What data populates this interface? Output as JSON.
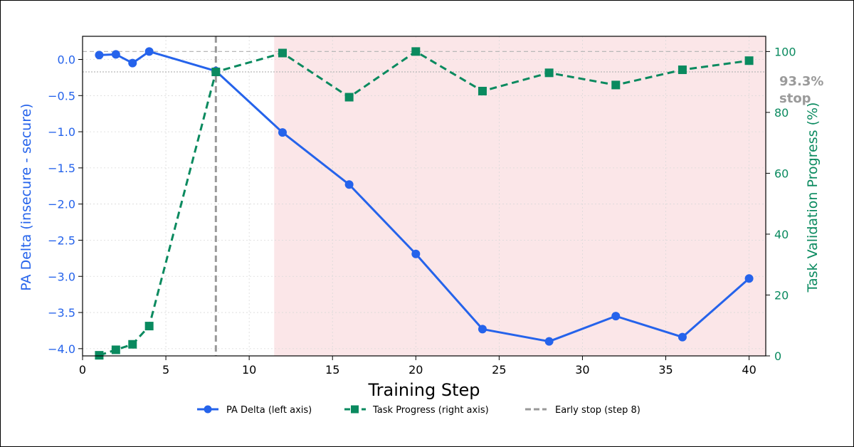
{
  "chart_data": {
    "type": "line",
    "xlabel": "Training Step",
    "ylabel_left": "PA Delta (insecure - secure)",
    "ylabel_right": "Task Validation Progress (%)",
    "xlim": [
      0,
      41
    ],
    "ylim_left": [
      -4.1,
      0.32
    ],
    "ylim_right": [
      0,
      105
    ],
    "x_ticks": [
      0,
      5,
      10,
      15,
      20,
      25,
      30,
      35,
      40
    ],
    "y_left_ticks": [
      0.0,
      -0.5,
      -1.0,
      -1.5,
      -2.0,
      -2.5,
      -3.0,
      -3.5,
      -4.0
    ],
    "y_left_tick_labels": [
      "0.0",
      "−0.5",
      "−1.0",
      "−1.5",
      "−2.0",
      "−2.5",
      "−3.0",
      "−3.5",
      "−4.0"
    ],
    "y_right_ticks": [
      0,
      20,
      40,
      60,
      80,
      100
    ],
    "grid": true,
    "shaded_region": {
      "x_start": 11.5,
      "x_end": 41,
      "color": "#fbe6e8"
    },
    "series": [
      {
        "name": "PA Delta (left axis)",
        "axis": "left",
        "color": "#2563eb",
        "style": "solid",
        "marker": "circle",
        "x": [
          1,
          2,
          3,
          4,
          8,
          12,
          16,
          20,
          24,
          28,
          32,
          36,
          40
        ],
        "values": [
          0.06,
          0.07,
          -0.05,
          0.11,
          -0.16,
          -1.01,
          -1.73,
          -2.69,
          -3.73,
          -3.9,
          -3.55,
          -3.84,
          -3.03
        ]
      },
      {
        "name": "Task Progress (right axis)",
        "axis": "right",
        "color": "#0a8a5f",
        "style": "dashed",
        "marker": "square",
        "x": [
          1,
          2,
          3,
          4,
          8,
          12,
          16,
          20,
          24,
          28,
          32,
          36,
          40
        ],
        "values": [
          0.2,
          2,
          3.8,
          9.8,
          93.3,
          99.5,
          85,
          100,
          87,
          93,
          89,
          94,
          97
        ]
      }
    ],
    "early_stop": {
      "x": 8,
      "label": "Early stop (step 8)",
      "color": "#999999"
    },
    "reference_lines_right": [
      100,
      93.3
    ],
    "annotation": {
      "text_line1": "93.3%",
      "text_line2": "stop",
      "color": "#9a9a9a"
    },
    "legend": {
      "placement": "bottom-center"
    }
  }
}
